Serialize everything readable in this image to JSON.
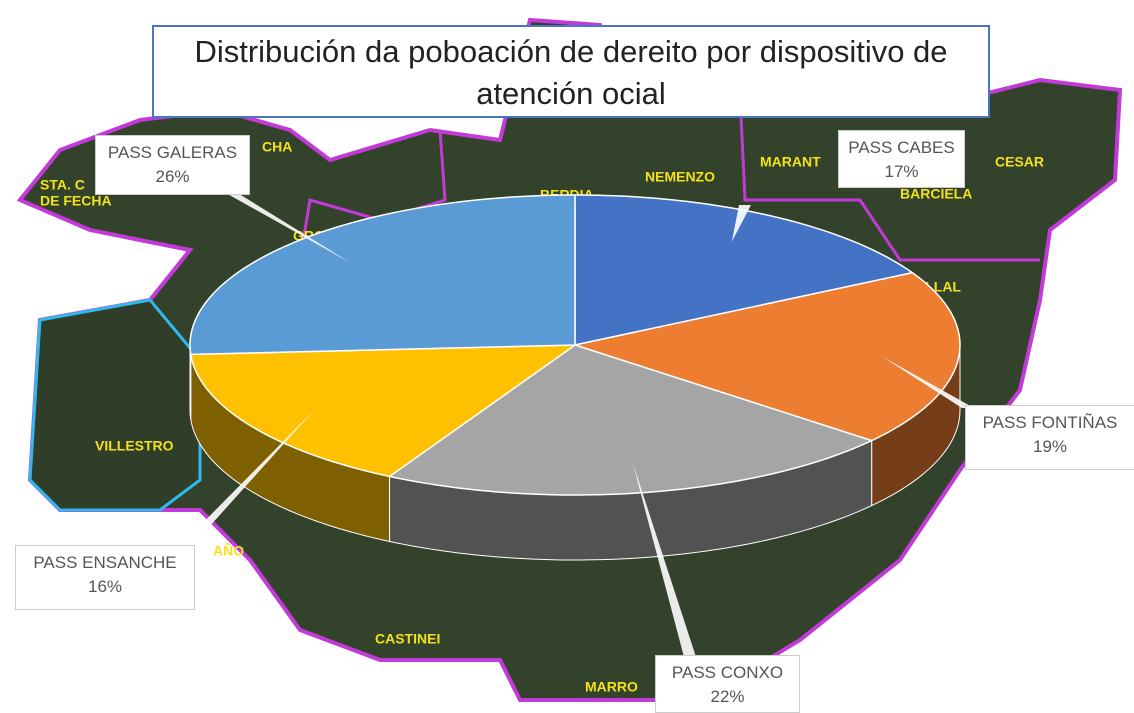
{
  "chart_data": {
    "type": "pie3d",
    "title": "Distribución da poboación de dereito por dispositivo de atención ocial",
    "categories": [
      "PASS CABES",
      "PASS FONTIÑAS",
      "PASS CONXO",
      "PASS ENSANCHE",
      "PASS GALERAS"
    ],
    "values": [
      17,
      19,
      22,
      16,
      26
    ],
    "value_labels": [
      "17%",
      "19%",
      "22%",
      "16%",
      "26%"
    ],
    "colors": [
      "#4472c4",
      "#ed7d31",
      "#a5a5a5",
      "#ffc000",
      "#5b9bd5"
    ],
    "map_labels": [
      "CHA",
      "STA. C",
      "DE FECHA",
      "GRO",
      "BERDIA",
      "NEMENZO",
      "MARANT",
      "CESAR",
      "BARCIELA",
      "BALLAL",
      "VILLESTRO",
      "AÑO",
      "CASTINEI",
      "MARRO"
    ]
  }
}
